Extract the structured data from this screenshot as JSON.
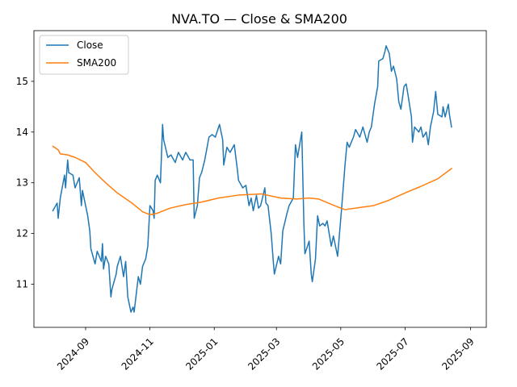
{
  "chart_data": {
    "type": "line",
    "title": "NVA.TO — Close & SMA200",
    "xlabel": "",
    "ylabel": "",
    "x_range": [
      "2024-07-14",
      "2025-09-16"
    ],
    "ylim": [
      10.15,
      16.0
    ],
    "x_ticks": [
      {
        "date": "2024-09-01",
        "label": "2024-09"
      },
      {
        "date": "2024-11-01",
        "label": "2024-11"
      },
      {
        "date": "2025-01-01",
        "label": "2025-01"
      },
      {
        "date": "2025-03-01",
        "label": "2025-03"
      },
      {
        "date": "2025-05-01",
        "label": "2025-05"
      },
      {
        "date": "2025-07-01",
        "label": "2025-07"
      },
      {
        "date": "2025-09-01",
        "label": "2025-09"
      }
    ],
    "y_ticks": [
      11,
      12,
      13,
      14,
      15
    ],
    "grid": false,
    "legend": {
      "position": "top-left"
    },
    "series": [
      {
        "name": "Close",
        "color": "#1f77b4",
        "points": [
          [
            "2024-08-01",
            12.45
          ],
          [
            "2024-08-05",
            12.6
          ],
          [
            "2024-08-06",
            12.3
          ],
          [
            "2024-08-08",
            12.7
          ],
          [
            "2024-08-12",
            13.15
          ],
          [
            "2024-08-13",
            12.9
          ],
          [
            "2024-08-15",
            13.45
          ],
          [
            "2024-08-16",
            13.2
          ],
          [
            "2024-08-20",
            13.15
          ],
          [
            "2024-08-22",
            12.9
          ],
          [
            "2024-08-26",
            13.1
          ],
          [
            "2024-08-28",
            12.55
          ],
          [
            "2024-08-29",
            12.85
          ],
          [
            "2024-09-03",
            12.35
          ],
          [
            "2024-09-05",
            12.05
          ],
          [
            "2024-09-06",
            11.7
          ],
          [
            "2024-09-10",
            11.4
          ],
          [
            "2024-09-12",
            11.65
          ],
          [
            "2024-09-16",
            11.45
          ],
          [
            "2024-09-17",
            11.8
          ],
          [
            "2024-09-18",
            11.3
          ],
          [
            "2024-09-20",
            11.55
          ],
          [
            "2024-09-23",
            11.4
          ],
          [
            "2024-09-25",
            10.75
          ],
          [
            "2024-09-26",
            10.9
          ],
          [
            "2024-09-30",
            11.2
          ],
          [
            "2024-10-01",
            11.35
          ],
          [
            "2024-10-04",
            11.55
          ],
          [
            "2024-10-07",
            11.15
          ],
          [
            "2024-10-09",
            11.45
          ],
          [
            "2024-10-11",
            10.75
          ],
          [
            "2024-10-14",
            10.45
          ],
          [
            "2024-10-16",
            10.55
          ],
          [
            "2024-10-17",
            10.45
          ],
          [
            "2024-10-21",
            11.15
          ],
          [
            "2024-10-23",
            11.0
          ],
          [
            "2024-10-25",
            11.35
          ],
          [
            "2024-10-28",
            11.5
          ],
          [
            "2024-10-30",
            11.75
          ],
          [
            "2024-11-01",
            12.55
          ],
          [
            "2024-11-04",
            12.45
          ],
          [
            "2024-11-05",
            12.3
          ],
          [
            "2024-11-06",
            13.05
          ],
          [
            "2024-11-08",
            13.15
          ],
          [
            "2024-11-11",
            13.0
          ],
          [
            "2024-11-13",
            14.15
          ],
          [
            "2024-11-14",
            13.85
          ],
          [
            "2024-11-18",
            13.5
          ],
          [
            "2024-11-21",
            13.55
          ],
          [
            "2024-11-25",
            13.4
          ],
          [
            "2024-11-28",
            13.6
          ],
          [
            "2024-12-02",
            13.45
          ],
          [
            "2024-12-05",
            13.6
          ],
          [
            "2024-12-09",
            13.45
          ],
          [
            "2024-12-12",
            13.45
          ],
          [
            "2024-12-13",
            12.3
          ],
          [
            "2024-12-16",
            12.55
          ],
          [
            "2024-12-18",
            13.1
          ],
          [
            "2024-12-20",
            13.2
          ],
          [
            "2024-12-23",
            13.45
          ],
          [
            "2024-12-27",
            13.9
          ],
          [
            "2024-12-30",
            13.95
          ],
          [
            "2025-01-02",
            13.9
          ],
          [
            "2025-01-06",
            14.15
          ],
          [
            "2025-01-09",
            13.85
          ],
          [
            "2025-01-10",
            13.35
          ],
          [
            "2025-01-13",
            13.7
          ],
          [
            "2025-01-16",
            13.6
          ],
          [
            "2025-01-20",
            13.75
          ],
          [
            "2025-01-23",
            13.25
          ],
          [
            "2025-01-24",
            13.05
          ],
          [
            "2025-01-28",
            12.9
          ],
          [
            "2025-01-31",
            12.95
          ],
          [
            "2025-02-03",
            12.55
          ],
          [
            "2025-02-05",
            12.7
          ],
          [
            "2025-02-07",
            12.45
          ],
          [
            "2025-02-10",
            12.75
          ],
          [
            "2025-02-12",
            12.5
          ],
          [
            "2025-02-14",
            12.55
          ],
          [
            "2025-02-18",
            12.9
          ],
          [
            "2025-02-19",
            12.6
          ],
          [
            "2025-02-21",
            12.55
          ],
          [
            "2025-02-24",
            12.0
          ],
          [
            "2025-02-26",
            11.45
          ],
          [
            "2025-02-27",
            11.2
          ],
          [
            "2025-03-03",
            11.55
          ],
          [
            "2025-03-05",
            11.4
          ],
          [
            "2025-03-07",
            12.05
          ],
          [
            "2025-03-11",
            12.4
          ],
          [
            "2025-03-13",
            12.55
          ],
          [
            "2025-03-17",
            12.7
          ],
          [
            "2025-03-19",
            13.75
          ],
          [
            "2025-03-21",
            13.5
          ],
          [
            "2025-03-25",
            14.0
          ],
          [
            "2025-03-27",
            12.2
          ],
          [
            "2025-03-28",
            11.6
          ],
          [
            "2025-04-01",
            11.85
          ],
          [
            "2025-04-03",
            11.2
          ],
          [
            "2025-04-04",
            11.05
          ],
          [
            "2025-04-07",
            11.5
          ],
          [
            "2025-04-09",
            12.35
          ],
          [
            "2025-04-11",
            12.15
          ],
          [
            "2025-04-14",
            12.2
          ],
          [
            "2025-04-16",
            12.15
          ],
          [
            "2025-04-18",
            12.25
          ],
          [
            "2025-04-22",
            11.75
          ],
          [
            "2025-04-24",
            11.95
          ],
          [
            "2025-04-28",
            11.55
          ],
          [
            "2025-05-02",
            12.55
          ],
          [
            "2025-05-05",
            13.35
          ],
          [
            "2025-05-07",
            13.8
          ],
          [
            "2025-05-09",
            13.7
          ],
          [
            "2025-05-13",
            13.9
          ],
          [
            "2025-05-15",
            14.05
          ],
          [
            "2025-05-19",
            13.9
          ],
          [
            "2025-05-22",
            14.1
          ],
          [
            "2025-05-26",
            13.8
          ],
          [
            "2025-05-28",
            14.0
          ],
          [
            "2025-05-30",
            14.1
          ],
          [
            "2025-06-02",
            14.55
          ],
          [
            "2025-06-05",
            14.9
          ],
          [
            "2025-06-06",
            15.4
          ],
          [
            "2025-06-10",
            15.45
          ],
          [
            "2025-06-12",
            15.6
          ],
          [
            "2025-06-13",
            15.7
          ],
          [
            "2025-06-16",
            15.55
          ],
          [
            "2025-06-18",
            15.2
          ],
          [
            "2025-06-20",
            15.3
          ],
          [
            "2025-06-23",
            15.05
          ],
          [
            "2025-06-25",
            14.6
          ],
          [
            "2025-06-27",
            14.45
          ],
          [
            "2025-06-30",
            14.9
          ],
          [
            "2025-07-02",
            14.95
          ],
          [
            "2025-07-04",
            14.7
          ],
          [
            "2025-07-07",
            14.3
          ],
          [
            "2025-07-08",
            13.8
          ],
          [
            "2025-07-10",
            14.1
          ],
          [
            "2025-07-14",
            14.0
          ],
          [
            "2025-07-16",
            14.1
          ],
          [
            "2025-07-18",
            13.9
          ],
          [
            "2025-07-21",
            14.0
          ],
          [
            "2025-07-23",
            13.75
          ],
          [
            "2025-07-25",
            14.1
          ],
          [
            "2025-07-28",
            14.4
          ],
          [
            "2025-07-30",
            14.8
          ],
          [
            "2025-08-01",
            14.35
          ],
          [
            "2025-08-05",
            14.3
          ],
          [
            "2025-08-06",
            14.5
          ],
          [
            "2025-08-08",
            14.3
          ],
          [
            "2025-08-11",
            14.55
          ],
          [
            "2025-08-12",
            14.35
          ],
          [
            "2025-08-14",
            14.1
          ]
        ]
      },
      {
        "name": "SMA200",
        "color": "#ff7f0e",
        "points": [
          [
            "2024-08-01",
            13.72
          ],
          [
            "2024-08-06",
            13.65
          ],
          [
            "2024-08-08",
            13.57
          ],
          [
            "2024-08-15",
            13.55
          ],
          [
            "2024-08-22",
            13.5
          ],
          [
            "2024-09-01",
            13.4
          ],
          [
            "2024-09-10",
            13.2
          ],
          [
            "2024-09-20",
            13.0
          ],
          [
            "2024-10-01",
            12.8
          ],
          [
            "2024-10-15",
            12.6
          ],
          [
            "2024-10-25",
            12.43
          ],
          [
            "2024-11-01",
            12.37
          ],
          [
            "2024-11-08",
            12.4
          ],
          [
            "2024-11-20",
            12.5
          ],
          [
            "2024-12-05",
            12.57
          ],
          [
            "2024-12-20",
            12.62
          ],
          [
            "2025-01-05",
            12.7
          ],
          [
            "2025-01-25",
            12.76
          ],
          [
            "2025-02-15",
            12.78
          ],
          [
            "2025-03-05",
            12.7
          ],
          [
            "2025-03-20",
            12.68
          ],
          [
            "2025-04-01",
            12.7
          ],
          [
            "2025-04-10",
            12.68
          ],
          [
            "2025-04-25",
            12.55
          ],
          [
            "2025-05-05",
            12.47
          ],
          [
            "2025-05-15",
            12.5
          ],
          [
            "2025-06-01",
            12.55
          ],
          [
            "2025-06-15",
            12.65
          ],
          [
            "2025-07-01",
            12.8
          ],
          [
            "2025-07-15",
            12.92
          ],
          [
            "2025-08-01",
            13.08
          ],
          [
            "2025-08-14",
            13.28
          ]
        ]
      }
    ]
  }
}
